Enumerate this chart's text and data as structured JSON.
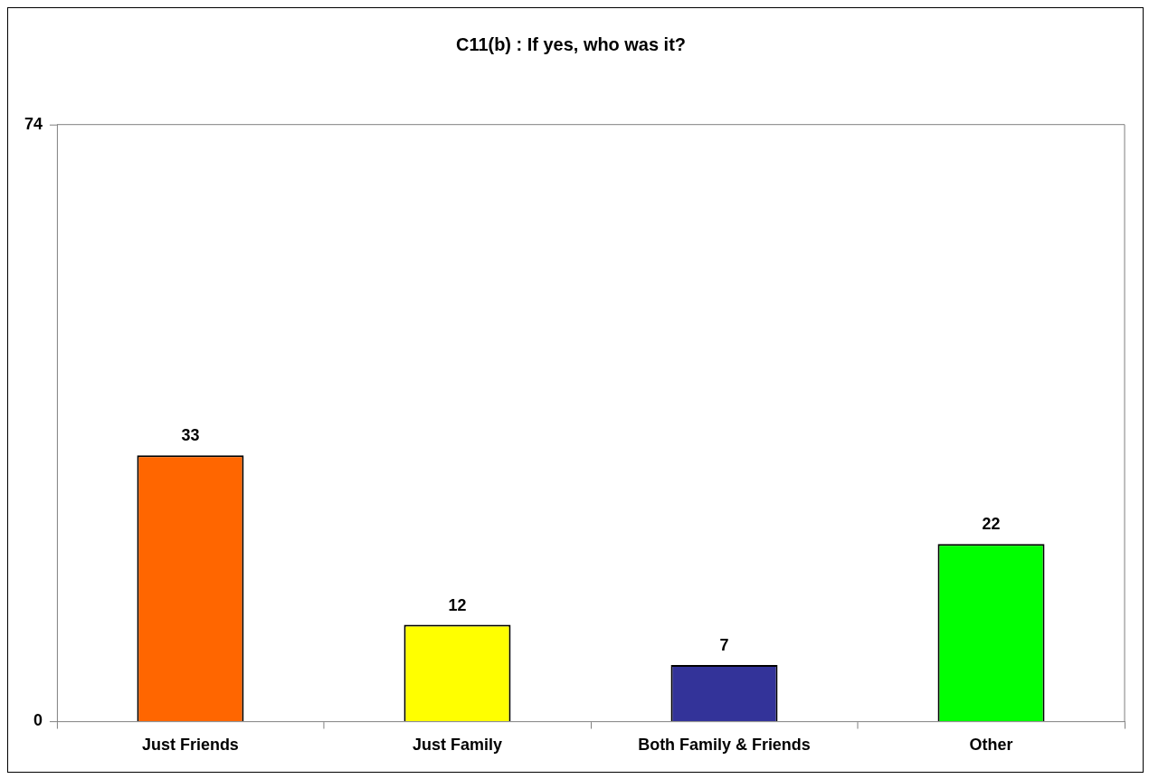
{
  "chart_data": {
    "type": "bar",
    "title": "C11(b) : If yes, who was it?",
    "categories": [
      "Just Friends",
      "Just Family",
      "Both Family & Friends",
      "Other"
    ],
    "values": [
      33,
      12,
      7,
      22
    ],
    "colors": [
      "#ff6600",
      "#ffff00",
      "#333399",
      "#00ff00"
    ],
    "ylim": [
      0,
      74
    ],
    "yticks": [
      0,
      74
    ],
    "grid": false,
    "legend": false,
    "data_labels": true
  }
}
